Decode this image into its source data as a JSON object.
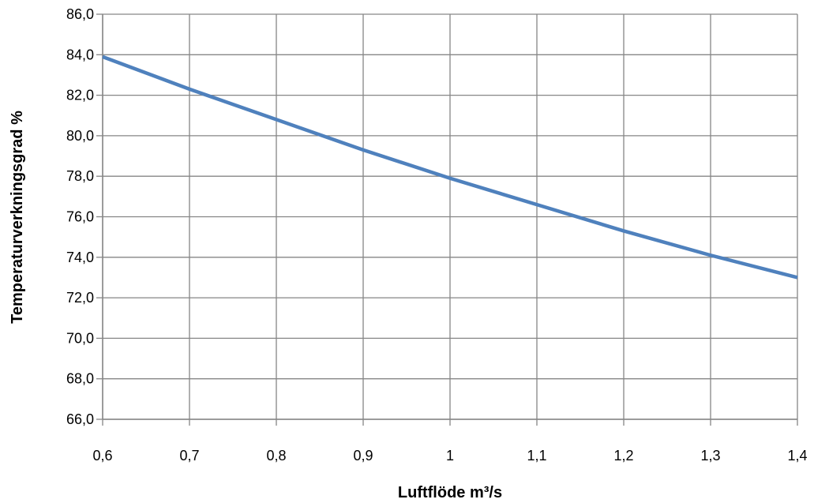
{
  "chart_data": {
    "type": "line",
    "xlabel": "Luftflöde m³/s",
    "ylabel": "Temperaturverkningsgrad %",
    "xlim": [
      0.6,
      1.4
    ],
    "ylim": [
      66.0,
      86.0
    ],
    "x_ticks": [
      "0,6",
      "0,7",
      "0,8",
      "0,9",
      "1",
      "1,1",
      "1,2",
      "1,3",
      "1,4"
    ],
    "y_ticks": [
      "86,0",
      "84,0",
      "82,0",
      "80,0",
      "78,0",
      "76,0",
      "74,0",
      "72,0",
      "70,0",
      "68,0",
      "66,0"
    ],
    "grid": true,
    "series": [
      {
        "x": [
          0.6,
          0.7,
          0.8,
          0.9,
          1.0,
          1.1,
          1.2,
          1.3,
          1.4
        ],
        "values": [
          83.9,
          82.3,
          80.8,
          79.3,
          77.9,
          76.6,
          75.3,
          74.1,
          73.0
        ],
        "color": "#4f81bd"
      }
    ],
    "grid_color": "#868686",
    "axis_color": "#868686"
  }
}
